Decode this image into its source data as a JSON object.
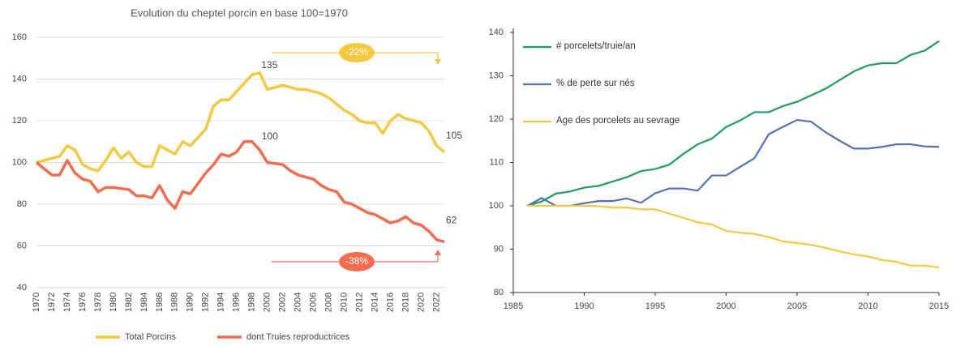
{
  "chart_data": [
    {
      "type": "line",
      "title": "Evolution du cheptel porcin en base 100=1970",
      "x": [
        1970,
        1971,
        1972,
        1973,
        1974,
        1975,
        1976,
        1977,
        1978,
        1979,
        1980,
        1981,
        1982,
        1983,
        1984,
        1985,
        1986,
        1987,
        1988,
        1989,
        1990,
        1991,
        1992,
        1993,
        1994,
        1995,
        1996,
        1997,
        1998,
        1999,
        2000,
        2001,
        2002,
        2003,
        2004,
        2005,
        2006,
        2007,
        2008,
        2009,
        2010,
        2011,
        2012,
        2013,
        2014,
        2015,
        2016,
        2017,
        2018,
        2019,
        2020,
        2021,
        2022,
        2023
      ],
      "xlim": [
        1970,
        2023
      ],
      "xticks": [
        1970,
        1972,
        1974,
        1976,
        1978,
        1980,
        1982,
        1984,
        1986,
        1988,
        1990,
        1992,
        1994,
        1996,
        1998,
        2000,
        2002,
        2004,
        2006,
        2008,
        2010,
        2012,
        2014,
        2016,
        2018,
        2020,
        2022
      ],
      "ylim": [
        40,
        160
      ],
      "yticks": [
        40,
        60,
        80,
        100,
        120,
        140,
        160
      ],
      "grid": true,
      "legend": "bottom",
      "series": [
        {
          "name": "Total Porcins",
          "color": "#f5c842",
          "values": [
            100,
            101,
            102,
            103,
            108,
            106,
            99,
            97,
            96,
            101,
            107,
            102,
            105,
            100,
            98,
            98,
            108,
            106,
            104,
            110,
            108,
            112,
            116,
            127,
            130,
            130,
            134,
            138,
            142,
            143,
            135,
            136,
            137,
            136,
            135,
            135,
            134,
            133,
            131,
            128,
            125,
            123,
            120,
            119,
            119,
            114,
            120,
            123,
            121,
            120,
            119,
            115,
            108,
            105
          ]
        },
        {
          "name": "dont Truies reproductrices",
          "color": "#f26d50",
          "values": [
            100,
            97,
            94,
            94,
            101,
            95,
            92,
            91,
            86,
            88,
            88,
            87.5,
            87,
            84,
            84,
            83,
            89,
            82,
            78,
            86,
            85,
            90,
            95,
            99,
            104,
            103,
            105,
            110,
            110,
            106,
            100,
            99.5,
            99,
            96,
            94,
            93,
            92,
            89,
            87,
            86,
            81,
            80,
            78,
            76,
            75,
            73,
            71,
            72,
            74,
            71,
            70,
            67,
            63,
            62
          ]
        }
      ],
      "annotations": [
        "135",
        "100",
        "105",
        "62",
        "-22%",
        "-38%"
      ]
    },
    {
      "type": "line",
      "x": [
        1986,
        1987,
        1988,
        1989,
        1990,
        1991,
        1992,
        1993,
        1994,
        1995,
        1996,
        1997,
        1998,
        1999,
        2000,
        2001,
        2002,
        2003,
        2004,
        2005,
        2006,
        2007,
        2008,
        2009,
        2010,
        2011,
        2012,
        2013,
        2014,
        2015
      ],
      "xlim": [
        1985,
        2015
      ],
      "xticks": [
        1985,
        1990,
        1995,
        2000,
        2005,
        2010,
        2015
      ],
      "ylim": [
        80,
        140
      ],
      "yticks": [
        80,
        90,
        100,
        110,
        120,
        130,
        140
      ],
      "grid": false,
      "legend": "top-left",
      "series": [
        {
          "name": "# porcelets/truie/an",
          "color": "#1e9e5a",
          "values": [
            100,
            101,
            102.8,
            103.3,
            104.2,
            104.6,
            105.6,
            106.6,
            108,
            108.5,
            109.5,
            112,
            114.2,
            115.5,
            118.2,
            119.7,
            121.6,
            121.6,
            123,
            124,
            125.5,
            127,
            129,
            131,
            132.4,
            132.9,
            132.9,
            134.8,
            135.8,
            138
          ]
        },
        {
          "name": "% de perte sur nés",
          "color": "#5470b8",
          "values": [
            100,
            101.8,
            100,
            100,
            100.6,
            101.1,
            101.1,
            101.7,
            100.7,
            102.9,
            104,
            104,
            103.5,
            107,
            107,
            109,
            111,
            116.5,
            118.2,
            119.8,
            119.4,
            117,
            115,
            113.2,
            113.2,
            113.6,
            114.2,
            114.2,
            113.7,
            113.6
          ]
        },
        {
          "name": "Age des porcelets au sevrage",
          "color": "#f5c842",
          "values": [
            100,
            100,
            100,
            100,
            100,
            99.9,
            99.6,
            99.6,
            99.2,
            99.2,
            98.2,
            97.2,
            96.2,
            95.7,
            94.2,
            93.8,
            93.5,
            92.8,
            91.8,
            91.4,
            91,
            90.3,
            89.5,
            88.8,
            88.3,
            87.5,
            87.1,
            86.2,
            86.2,
            85.8
          ]
        }
      ]
    }
  ]
}
